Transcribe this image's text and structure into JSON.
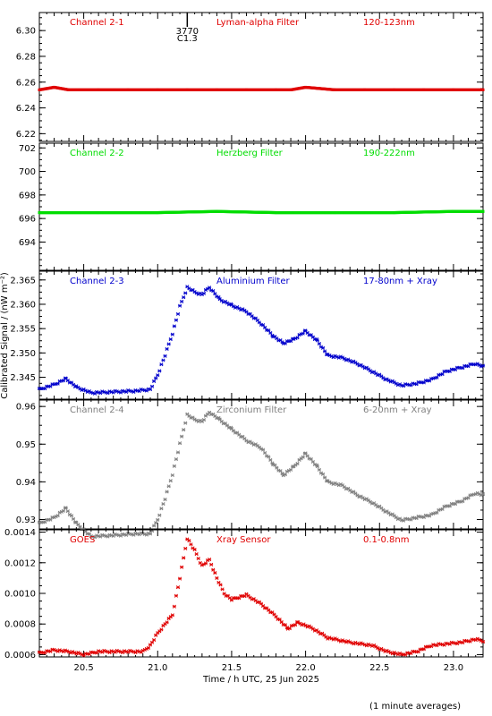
{
  "figure": {
    "ylabel": "Calibrated Signal / (nW m⁻²)",
    "xlabel": "Time / h UTC, 25 Jun 2025",
    "footnote": "(1 minute averages)",
    "marker": {
      "label_top": "3770",
      "label_bottom": "C1.3",
      "x": 21.2
    }
  },
  "chart_data": [
    {
      "type": "scatter",
      "labels": {
        "channel": "Channel 2-1",
        "filter": "Lyman-alpha Filter",
        "band": "120-123nm"
      },
      "color": "#e00000",
      "xlim": [
        20.2,
        23.2
      ],
      "ylim": [
        6.214,
        6.314
      ],
      "yticks": [
        6.22,
        6.24,
        6.26,
        6.28,
        6.3
      ],
      "ytick_labels": [
        "6.22",
        "6.24",
        "6.26",
        "6.28",
        "6.30"
      ],
      "series": [
        {
          "x": [
            20.2,
            20.25,
            20.3,
            20.4,
            20.6,
            20.8,
            21.0,
            21.2,
            21.4,
            21.6,
            21.8,
            21.9,
            22.0,
            22.1,
            22.2,
            22.4,
            22.6,
            22.8,
            23.0,
            23.2
          ],
          "y": [
            6.254,
            6.255,
            6.256,
            6.254,
            6.254,
            6.254,
            6.254,
            6.254,
            6.254,
            6.254,
            6.254,
            6.254,
            6.256,
            6.255,
            6.254,
            6.254,
            6.254,
            6.254,
            6.254,
            6.254
          ]
        }
      ]
    },
    {
      "type": "scatter",
      "labels": {
        "channel": "Channel 2-2",
        "filter": "Herzberg Filter",
        "band": "190-222nm"
      },
      "color": "#00dd00",
      "xlim": [
        20.2,
        23.2
      ],
      "ylim": [
        691.6,
        702.4
      ],
      "yticks": [
        694,
        696,
        698,
        700,
        702
      ],
      "ytick_labels": [
        "694",
        "696",
        "698",
        "700",
        "702"
      ],
      "series": [
        {
          "x": [
            20.2,
            20.6,
            21.0,
            21.4,
            21.8,
            22.2,
            22.6,
            23.0,
            23.2
          ],
          "y": [
            696.5,
            696.5,
            696.5,
            696.6,
            696.5,
            696.5,
            696.5,
            696.6,
            696.6
          ]
        }
      ]
    },
    {
      "type": "scatter",
      "labels": {
        "channel": "Channel 2-3",
        "filter": "Aluminium Filter",
        "band": "17-80nm + Xray"
      },
      "color": "#0000cc",
      "xlim": [
        20.2,
        23.2
      ],
      "ylim": [
        2.3405,
        2.3668
      ],
      "yticks": [
        2.345,
        2.35,
        2.355,
        2.36,
        2.365
      ],
      "ytick_labels": [
        "2.345",
        "2.350",
        "2.355",
        "2.360",
        "2.365"
      ],
      "series": [
        {
          "x": [
            20.2,
            20.3,
            20.38,
            20.45,
            20.55,
            20.7,
            20.85,
            20.95,
            21.0,
            21.05,
            21.1,
            21.15,
            21.2,
            21.25,
            21.3,
            21.35,
            21.42,
            21.5,
            21.6,
            21.7,
            21.78,
            21.85,
            21.92,
            22.0,
            22.08,
            22.15,
            22.25,
            22.35,
            22.45,
            22.55,
            22.65,
            22.75,
            22.85,
            22.95,
            23.05,
            23.15,
            23.2
          ],
          "y": [
            2.3425,
            2.3435,
            2.3447,
            2.343,
            2.3418,
            2.342,
            2.3422,
            2.3425,
            2.3455,
            2.3495,
            2.354,
            2.3595,
            2.3635,
            2.3625,
            2.362,
            2.3635,
            2.361,
            2.3598,
            2.3585,
            2.356,
            2.3535,
            2.352,
            2.3528,
            2.3545,
            2.3525,
            2.3495,
            2.349,
            2.3478,
            2.3462,
            2.3445,
            2.3433,
            2.3437,
            2.3445,
            2.3462,
            2.347,
            2.3478,
            2.3472
          ]
        }
      ]
    },
    {
      "type": "scatter",
      "labels": {
        "channel": "Channel 2-4",
        "filter": "Zirconium Filter",
        "band": "6-20nm + Xray"
      },
      "color": "#808080",
      "xlim": [
        20.2,
        23.2
      ],
      "ylim": [
        0.9275,
        0.9617
      ],
      "yticks": [
        0.93,
        0.94,
        0.95,
        0.96
      ],
      "ytick_labels": [
        "0.93",
        "0.94",
        "0.95",
        "0.96"
      ],
      "series": [
        {
          "x": [
            20.2,
            20.3,
            20.38,
            20.45,
            20.55,
            20.7,
            20.85,
            20.95,
            21.0,
            21.05,
            21.1,
            21.15,
            21.2,
            21.25,
            21.3,
            21.35,
            21.42,
            21.5,
            21.6,
            21.7,
            21.78,
            21.85,
            21.92,
            22.0,
            22.08,
            22.15,
            22.25,
            22.35,
            22.45,
            22.55,
            22.65,
            22.75,
            22.85,
            22.95,
            23.05,
            23.15,
            23.2
          ],
          "y": [
            0.929,
            0.9305,
            0.933,
            0.929,
            0.9255,
            0.9258,
            0.9262,
            0.9262,
            0.93,
            0.9355,
            0.942,
            0.95,
            0.9578,
            0.9565,
            0.956,
            0.9585,
            0.9565,
            0.954,
            0.951,
            0.949,
            0.9448,
            0.9418,
            0.944,
            0.9475,
            0.944,
            0.94,
            0.939,
            0.9365,
            0.9345,
            0.932,
            0.9298,
            0.9305,
            0.9312,
            0.9335,
            0.9348,
            0.937,
            0.9365
          ]
        }
      ]
    },
    {
      "type": "scatter",
      "labels": {
        "channel": "GOES",
        "filter": "Xray Sensor",
        "band": "0.1-0.8nm"
      },
      "color": "#e00000",
      "xlim": [
        20.2,
        23.2
      ],
      "ylim": [
        0.000585,
        0.001415
      ],
      "yticks": [
        0.0006,
        0.0008,
        0.001,
        0.0012,
        0.0014
      ],
      "ytick_labels": [
        "0.0006",
        "0.0008",
        "0.0010",
        "0.0012",
        "0.0014"
      ],
      "series": [
        {
          "x": [
            20.2,
            20.3,
            20.4,
            20.5,
            20.6,
            20.7,
            20.8,
            20.9,
            20.95,
            21.0,
            21.05,
            21.1,
            21.15,
            21.2,
            21.25,
            21.3,
            21.35,
            21.4,
            21.45,
            21.5,
            21.6,
            21.7,
            21.8,
            21.88,
            21.95,
            22.05,
            22.15,
            22.3,
            22.45,
            22.55,
            22.65,
            22.75,
            22.85,
            22.95,
            23.05,
            23.15,
            23.2
          ],
          "y": [
            0.00061,
            0.00063,
            0.00062,
            0.0006,
            0.00062,
            0.00062,
            0.00062,
            0.00062,
            0.00066,
            0.00074,
            0.0008,
            0.00086,
            0.0011,
            0.00136,
            0.00128,
            0.00118,
            0.00122,
            0.0011,
            0.001,
            0.00096,
            0.00099,
            0.00093,
            0.00085,
            0.00077,
            0.00081,
            0.00077,
            0.00071,
            0.00068,
            0.00066,
            0.00062,
            0.0006,
            0.00062,
            0.00066,
            0.00067,
            0.00068,
            0.0007,
            0.00069
          ]
        }
      ]
    }
  ]
}
